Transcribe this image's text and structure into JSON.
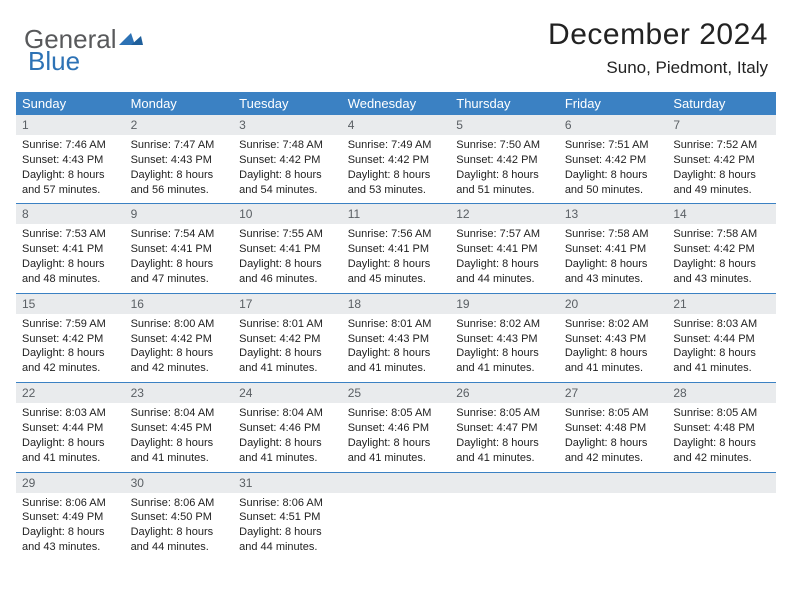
{
  "brand": {
    "part1": "General",
    "part2": "Blue"
  },
  "title": "December 2024",
  "location": "Suno, Piedmont, Italy",
  "colors": {
    "header_bg": "#3b81c3",
    "header_fg": "#ffffff",
    "num_bg": "#e9ebed",
    "num_fg": "#5a5f64",
    "rule": "#3b81c3",
    "brand_gray": "#58595b",
    "brand_blue": "#2d72b5",
    "page_bg": "#ffffff",
    "text": "#202020"
  },
  "typography": {
    "title_fontsize": 30,
    "location_fontsize": 17,
    "dayhdr_fontsize": 13,
    "daynum_fontsize": 12,
    "body_fontsize": 11
  },
  "layout": {
    "columns": 7,
    "rows_of_weeks": 5
  },
  "day_headers": [
    "Sunday",
    "Monday",
    "Tuesday",
    "Wednesday",
    "Thursday",
    "Friday",
    "Saturday"
  ],
  "weeks": [
    {
      "nums": [
        "1",
        "2",
        "3",
        "4",
        "5",
        "6",
        "7"
      ],
      "cells": [
        {
          "sunrise": "7:46 AM",
          "sunset": "4:43 PM",
          "daylight": "8 hours and 57 minutes."
        },
        {
          "sunrise": "7:47 AM",
          "sunset": "4:43 PM",
          "daylight": "8 hours and 56 minutes."
        },
        {
          "sunrise": "7:48 AM",
          "sunset": "4:42 PM",
          "daylight": "8 hours and 54 minutes."
        },
        {
          "sunrise": "7:49 AM",
          "sunset": "4:42 PM",
          "daylight": "8 hours and 53 minutes."
        },
        {
          "sunrise": "7:50 AM",
          "sunset": "4:42 PM",
          "daylight": "8 hours and 51 minutes."
        },
        {
          "sunrise": "7:51 AM",
          "sunset": "4:42 PM",
          "daylight": "8 hours and 50 minutes."
        },
        {
          "sunrise": "7:52 AM",
          "sunset": "4:42 PM",
          "daylight": "8 hours and 49 minutes."
        }
      ]
    },
    {
      "nums": [
        "8",
        "9",
        "10",
        "11",
        "12",
        "13",
        "14"
      ],
      "cells": [
        {
          "sunrise": "7:53 AM",
          "sunset": "4:41 PM",
          "daylight": "8 hours and 48 minutes."
        },
        {
          "sunrise": "7:54 AM",
          "sunset": "4:41 PM",
          "daylight": "8 hours and 47 minutes."
        },
        {
          "sunrise": "7:55 AM",
          "sunset": "4:41 PM",
          "daylight": "8 hours and 46 minutes."
        },
        {
          "sunrise": "7:56 AM",
          "sunset": "4:41 PM",
          "daylight": "8 hours and 45 minutes."
        },
        {
          "sunrise": "7:57 AM",
          "sunset": "4:41 PM",
          "daylight": "8 hours and 44 minutes."
        },
        {
          "sunrise": "7:58 AM",
          "sunset": "4:41 PM",
          "daylight": "8 hours and 43 minutes."
        },
        {
          "sunrise": "7:58 AM",
          "sunset": "4:42 PM",
          "daylight": "8 hours and 43 minutes."
        }
      ]
    },
    {
      "nums": [
        "15",
        "16",
        "17",
        "18",
        "19",
        "20",
        "21"
      ],
      "cells": [
        {
          "sunrise": "7:59 AM",
          "sunset": "4:42 PM",
          "daylight": "8 hours and 42 minutes."
        },
        {
          "sunrise": "8:00 AM",
          "sunset": "4:42 PM",
          "daylight": "8 hours and 42 minutes."
        },
        {
          "sunrise": "8:01 AM",
          "sunset": "4:42 PM",
          "daylight": "8 hours and 41 minutes."
        },
        {
          "sunrise": "8:01 AM",
          "sunset": "4:43 PM",
          "daylight": "8 hours and 41 minutes."
        },
        {
          "sunrise": "8:02 AM",
          "sunset": "4:43 PM",
          "daylight": "8 hours and 41 minutes."
        },
        {
          "sunrise": "8:02 AM",
          "sunset": "4:43 PM",
          "daylight": "8 hours and 41 minutes."
        },
        {
          "sunrise": "8:03 AM",
          "sunset": "4:44 PM",
          "daylight": "8 hours and 41 minutes."
        }
      ]
    },
    {
      "nums": [
        "22",
        "23",
        "24",
        "25",
        "26",
        "27",
        "28"
      ],
      "cells": [
        {
          "sunrise": "8:03 AM",
          "sunset": "4:44 PM",
          "daylight": "8 hours and 41 minutes."
        },
        {
          "sunrise": "8:04 AM",
          "sunset": "4:45 PM",
          "daylight": "8 hours and 41 minutes."
        },
        {
          "sunrise": "8:04 AM",
          "sunset": "4:46 PM",
          "daylight": "8 hours and 41 minutes."
        },
        {
          "sunrise": "8:05 AM",
          "sunset": "4:46 PM",
          "daylight": "8 hours and 41 minutes."
        },
        {
          "sunrise": "8:05 AM",
          "sunset": "4:47 PM",
          "daylight": "8 hours and 41 minutes."
        },
        {
          "sunrise": "8:05 AM",
          "sunset": "4:48 PM",
          "daylight": "8 hours and 42 minutes."
        },
        {
          "sunrise": "8:05 AM",
          "sunset": "4:48 PM",
          "daylight": "8 hours and 42 minutes."
        }
      ]
    },
    {
      "nums": [
        "29",
        "30",
        "31",
        "",
        "",
        "",
        ""
      ],
      "cells": [
        {
          "sunrise": "8:06 AM",
          "sunset": "4:49 PM",
          "daylight": "8 hours and 43 minutes."
        },
        {
          "sunrise": "8:06 AM",
          "sunset": "4:50 PM",
          "daylight": "8 hours and 44 minutes."
        },
        {
          "sunrise": "8:06 AM",
          "sunset": "4:51 PM",
          "daylight": "8 hours and 44 minutes."
        },
        null,
        null,
        null,
        null
      ]
    }
  ],
  "labels": {
    "sunrise": "Sunrise: ",
    "sunset": "Sunset: ",
    "daylight": "Daylight: "
  }
}
